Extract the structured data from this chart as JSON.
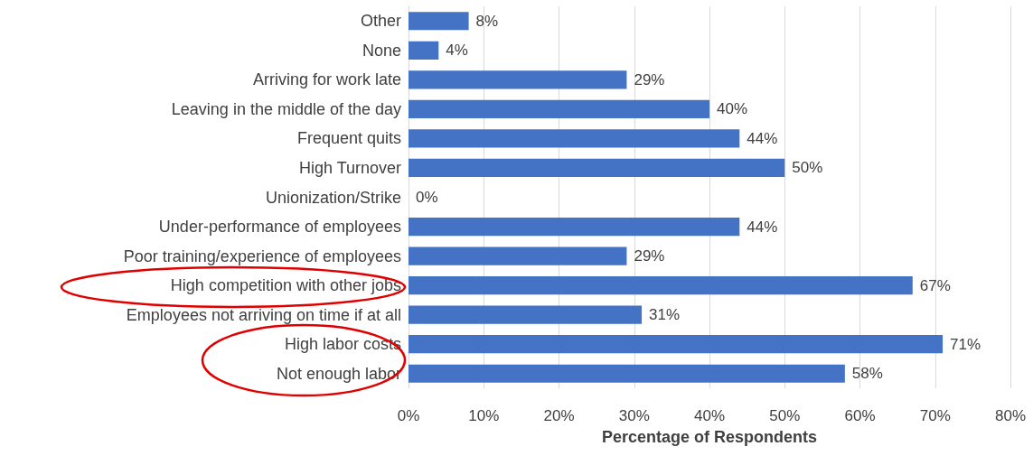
{
  "chart_data": {
    "type": "bar",
    "orientation": "horizontal",
    "xlabel": "Percentage of Respondents",
    "categories": [
      "Other",
      "None",
      "Arriving for work late",
      "Leaving in the middle of the day",
      "Frequent quits",
      "High Turnover",
      "Unionization/Strike",
      "Under-performance of employees",
      "Poor training/experience of employees",
      "High competition with other jobs",
      "Employees not arriving on time if at all",
      "High labor costs",
      "Not enough labor"
    ],
    "values": [
      8,
      4,
      29,
      40,
      44,
      50,
      0,
      44,
      29,
      67,
      31,
      71,
      58
    ],
    "value_labels": [
      "8%",
      "4%",
      "29%",
      "40%",
      "44%",
      "50%",
      "0%",
      "44%",
      "29%",
      "67%",
      "31%",
      "71%",
      "58%"
    ],
    "color": "#4472c4",
    "xlim": [
      0,
      80
    ],
    "xticks": [
      {
        "value": 0,
        "label": "0%"
      },
      {
        "value": 10,
        "label": "10%"
      },
      {
        "value": 20,
        "label": "20%"
      },
      {
        "value": 30,
        "label": "30%"
      },
      {
        "value": 40,
        "label": "40%"
      },
      {
        "value": 50,
        "label": "50%"
      },
      {
        "value": 60,
        "label": "60%"
      },
      {
        "value": 70,
        "label": "70%"
      },
      {
        "value": 80,
        "label": "80%"
      }
    ],
    "grid": "x"
  }
}
